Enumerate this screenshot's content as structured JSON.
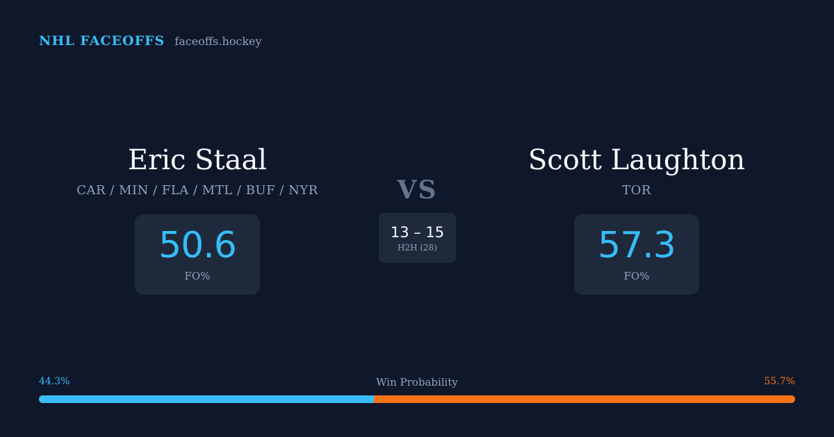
{
  "brand": {
    "name": "NHL FACEOFFS",
    "domain": "faceoffs.hockey"
  },
  "player_left": {
    "name": "Eric Staal",
    "teams": "CAR / MIN / FLA / MTL / BUF / NYR",
    "stat_value": "50.6",
    "stat_label": "FO%"
  },
  "player_right": {
    "name": "Scott Laughton",
    "teams": "TOR",
    "stat_value": "57.3",
    "stat_label": "FO%"
  },
  "matchup": {
    "vs_label": "VS",
    "h2h_score": "13 – 15",
    "h2h_label": "H2H (28)"
  },
  "win_probability": {
    "title": "Win Probability",
    "left_label": "44.3%",
    "right_label": "55.7%",
    "left_fraction": 0.443,
    "right_fraction": 0.557
  },
  "colors": {
    "background": "#0f172a",
    "card": "#1e293b",
    "accent_blue": "#38bdf8",
    "accent_orange": "#f97316"
  }
}
